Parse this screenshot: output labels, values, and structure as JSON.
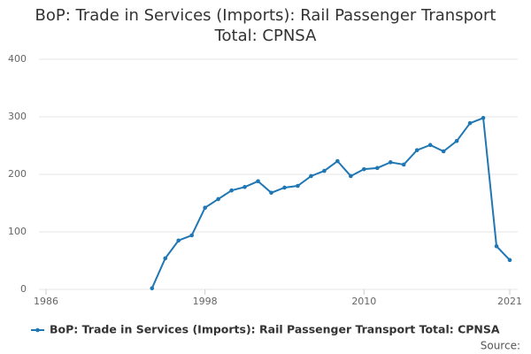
{
  "chart_data": {
    "type": "line",
    "title": "BoP: Trade in Services (Imports): Rail Passenger Transport Total: CPNSA",
    "x": [
      1994,
      1995,
      1996,
      1997,
      1998,
      1999,
      2000,
      2001,
      2002,
      2003,
      2004,
      2005,
      2006,
      2007,
      2008,
      2009,
      2010,
      2011,
      2012,
      2013,
      2014,
      2015,
      2016,
      2017,
      2018,
      2019,
      2020,
      2021
    ],
    "series": [
      {
        "name": "BoP: Trade in Services (Imports): Rail Passenger Transport Total: CPNSA",
        "color": "#1f77b4",
        "values": [
          2,
          54,
          85,
          94,
          142,
          157,
          172,
          178,
          188,
          168,
          177,
          180,
          197,
          206,
          223,
          197,
          209,
          211,
          221,
          217,
          242,
          251,
          240,
          258,
          289,
          298,
          75,
          51
        ]
      }
    ],
    "xlim": [
      1986,
      2021
    ],
    "xticks": [
      1986,
      1998,
      2010,
      2021
    ],
    "ylim": [
      0,
      400
    ],
    "yticks": [
      0,
      100,
      200,
      300,
      400
    ],
    "grid": true,
    "legend": "bottom",
    "source_label": "Source:"
  }
}
